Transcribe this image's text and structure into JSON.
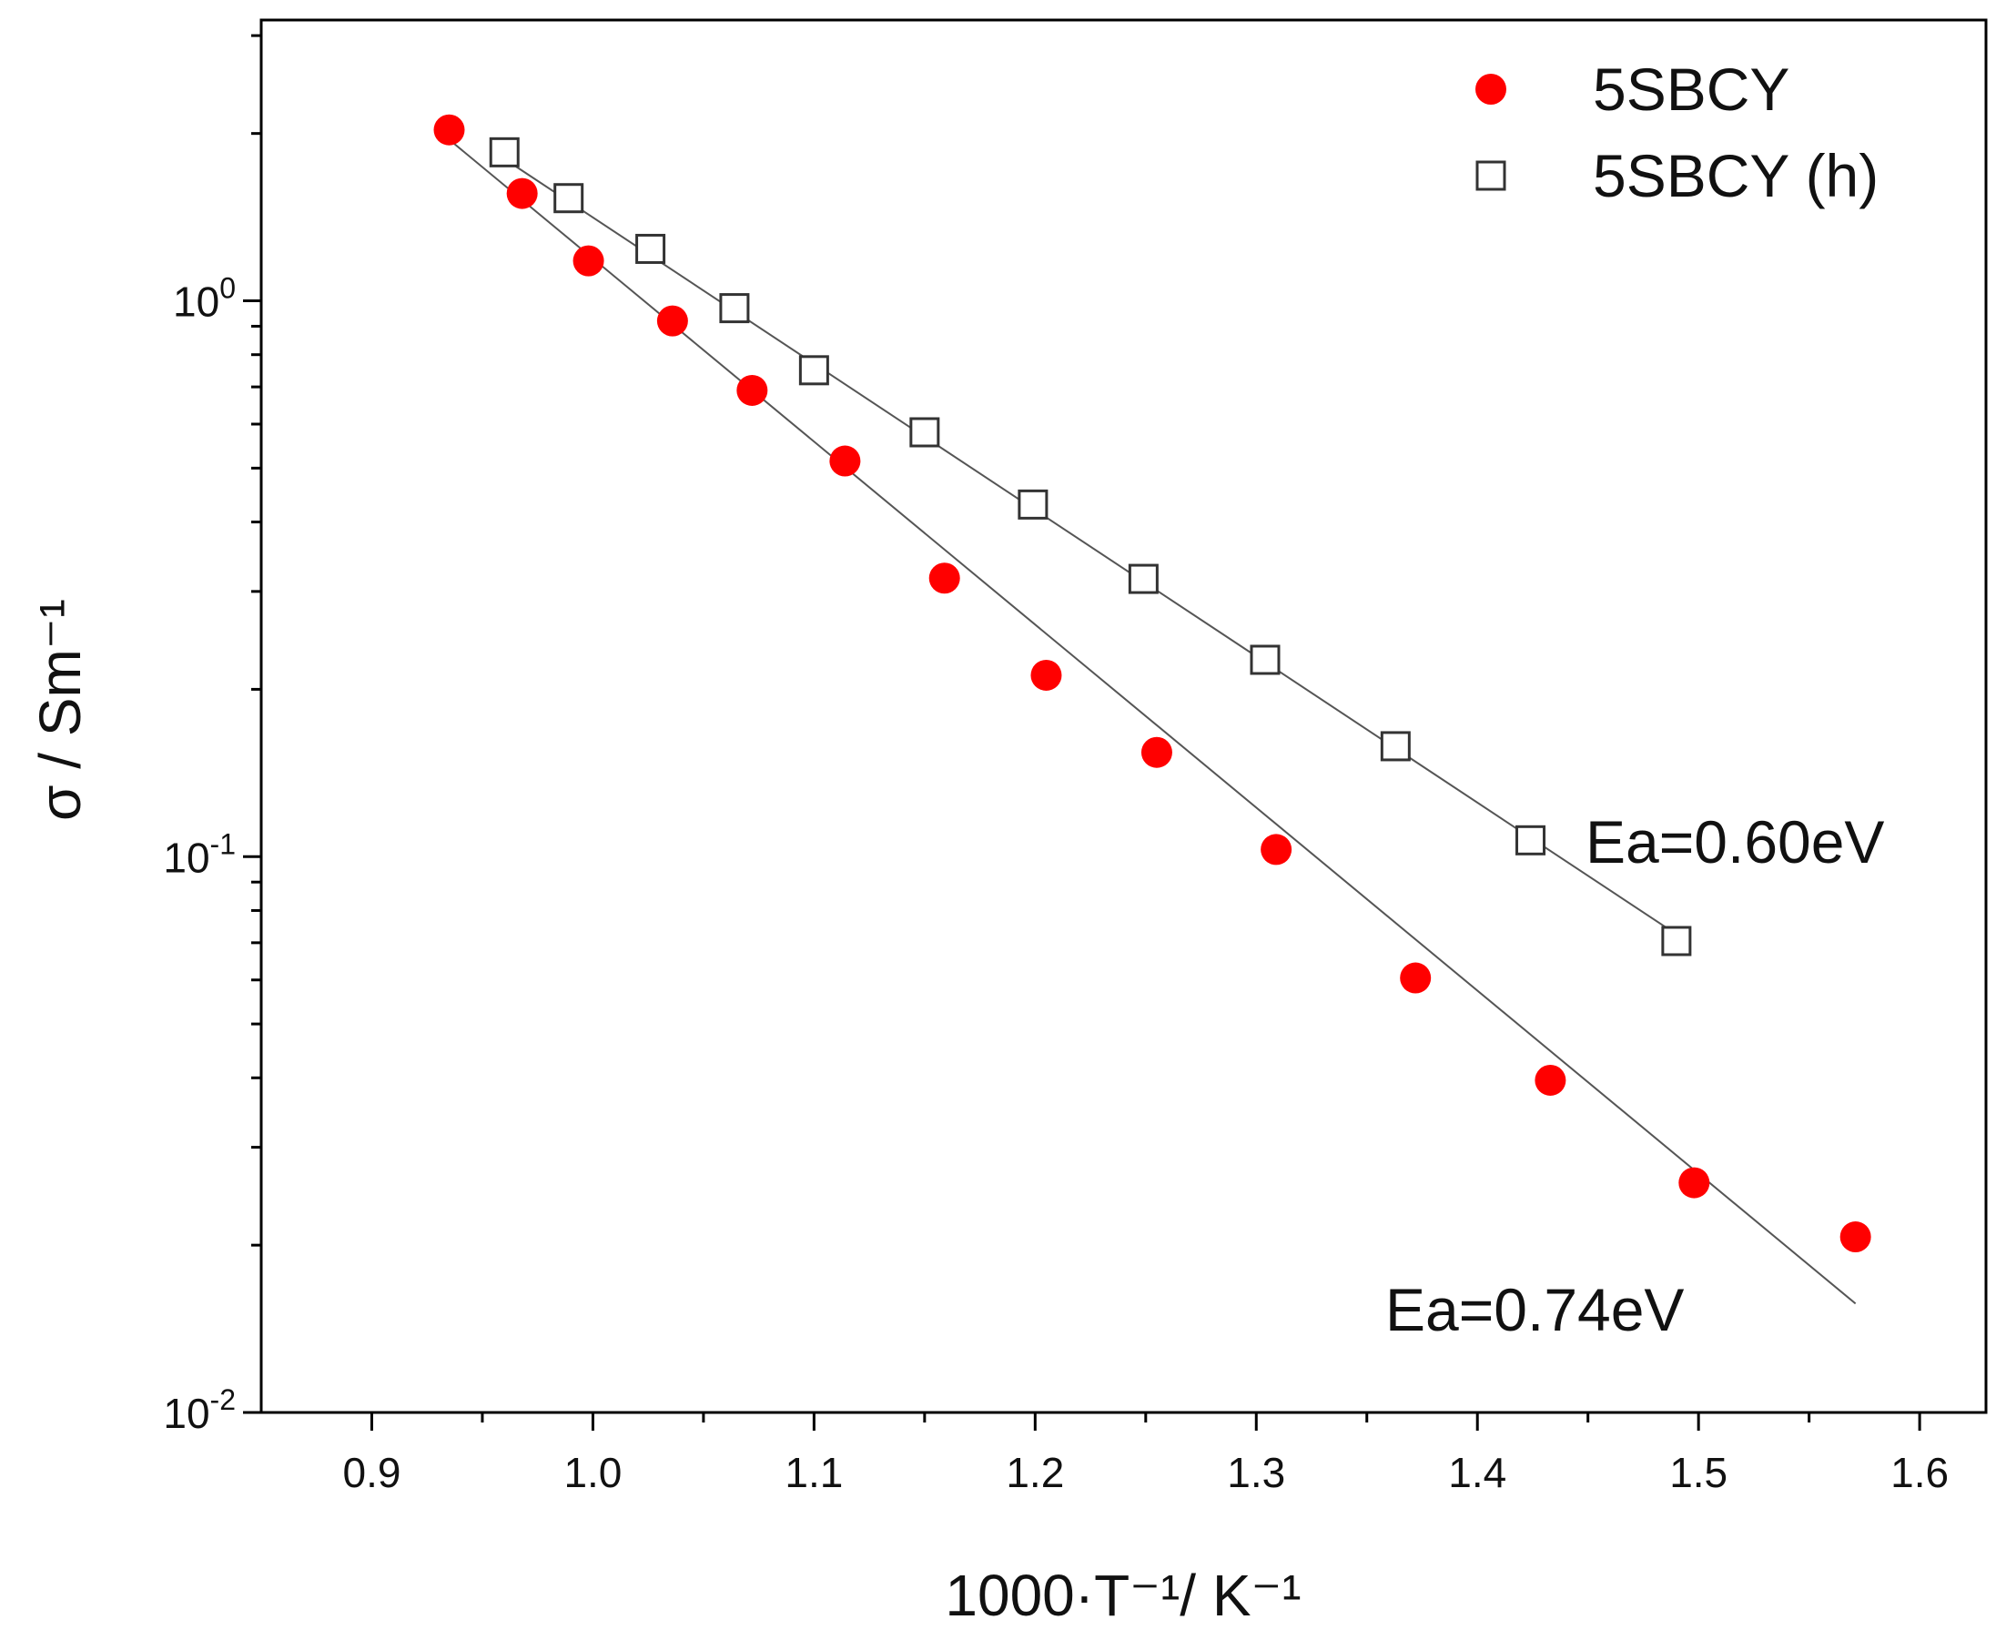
{
  "chart_data": {
    "type": "scatter",
    "title": "",
    "xlabel": "1000·T⁻¹/ K⁻¹",
    "ylabel": "σ / Sm⁻¹",
    "yscale": "log",
    "xlim": [
      0.85,
      1.63
    ],
    "ylim": [
      0.01,
      3.2
    ],
    "x_ticks": [
      0.9,
      1.0,
      1.1,
      1.2,
      1.3,
      1.4,
      1.5,
      1.6
    ],
    "x_tick_labels": [
      "0.9",
      "1.0",
      "1.1",
      "1.2",
      "1.3",
      "1.4",
      "1.5",
      "1.6"
    ],
    "y_ticks": [
      {
        "value": 1,
        "base": "10",
        "exp": "0"
      },
      {
        "value": 0.1,
        "base": "10",
        "exp": "-1"
      },
      {
        "value": 0.01,
        "base": "10",
        "exp": "-2"
      }
    ],
    "legend_position": "top-right",
    "series": [
      {
        "name": "5SBCY",
        "marker": "filled-circle",
        "color": "#ff0000",
        "x": [
          0.935,
          0.968,
          0.998,
          1.036,
          1.072,
          1.114,
          1.159,
          1.205,
          1.255,
          1.309,
          1.372,
          1.433,
          1.498,
          1.571
        ],
        "y": [
          2.03,
          1.56,
          1.18,
          0.92,
          0.69,
          0.515,
          0.317,
          0.212,
          0.154,
          0.103,
          0.0605,
          0.0396,
          0.0259,
          0.0207
        ],
        "fit": {
          "x": [
            0.935,
            1.571
          ],
          "y": [
            1.95,
            0.0157
          ]
        },
        "annotation": "Ea=0.74eV"
      },
      {
        "name": "5SBCY (h)",
        "marker": "open-square",
        "color": "#333333",
        "x": [
          0.96,
          0.989,
          1.026,
          1.064,
          1.1,
          1.15,
          1.199,
          1.249,
          1.304,
          1.363,
          1.424,
          1.49
        ],
        "y": [
          1.85,
          1.53,
          1.24,
          0.97,
          0.75,
          0.58,
          0.43,
          0.316,
          0.226,
          0.158,
          0.107,
          0.0705
        ],
        "fit": {
          "x": [
            0.96,
            1.49
          ],
          "y": [
            1.8,
            0.0725
          ]
        },
        "annotation": "Ea=0.60eV"
      }
    ]
  }
}
